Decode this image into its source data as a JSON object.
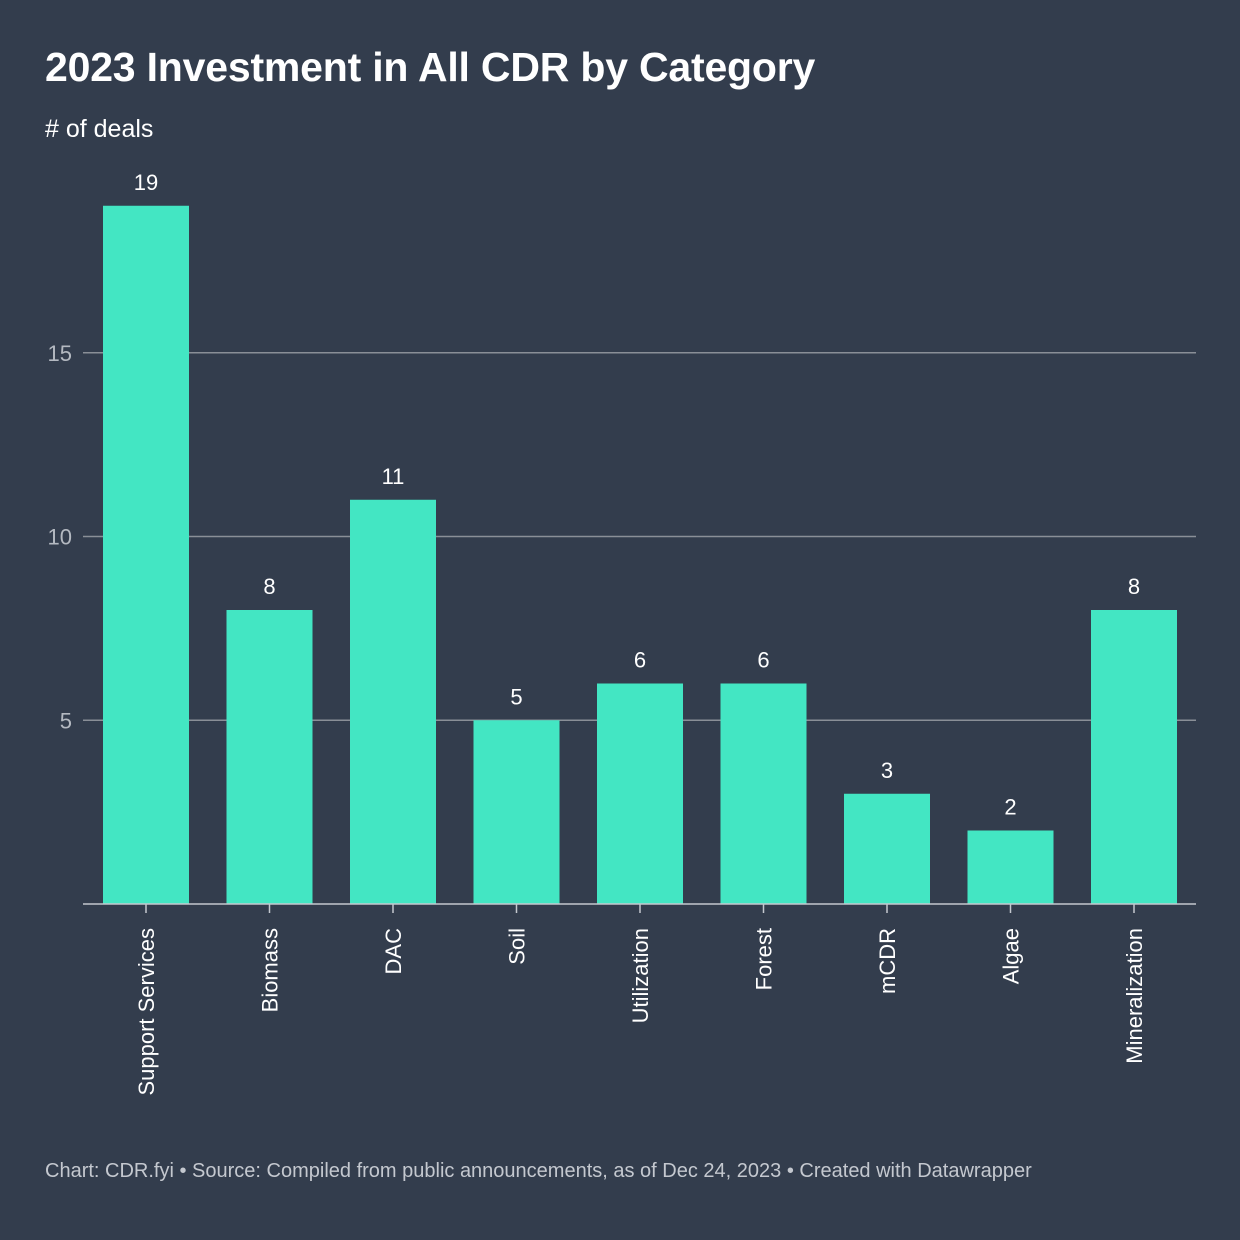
{
  "title": "2023 Investment in All CDR by Category",
  "subtitle": "# of deals",
  "footer": {
    "chart_credit": "Chart: CDR.fyi",
    "separator": "•",
    "source": "Source: Compiled from public announcements, as of Dec 24, 2023",
    "created_with": "Created with Datawrapper"
  },
  "colors": {
    "background": "#333d4d",
    "bar": "#43e6c3",
    "gridline": "#8a8f97",
    "tick_label": "#b4b9c1",
    "text": "#ffffff"
  },
  "chart_data": {
    "type": "bar",
    "title": "2023 Investment in All CDR by Category",
    "subtitle": "# of deals",
    "xlabel": "",
    "ylabel": "",
    "categories": [
      "Support Services",
      "Biomass",
      "DAC",
      "Soil",
      "Utilization",
      "Forest",
      "mCDR",
      "Algae",
      "Mineralization"
    ],
    "values": [
      19,
      8,
      11,
      5,
      6,
      6,
      3,
      2,
      8
    ],
    "ylim": [
      0,
      20
    ],
    "yticks": [
      5,
      10,
      15
    ],
    "grid": true,
    "data_labels": true,
    "x_tick_rotation": -90
  }
}
